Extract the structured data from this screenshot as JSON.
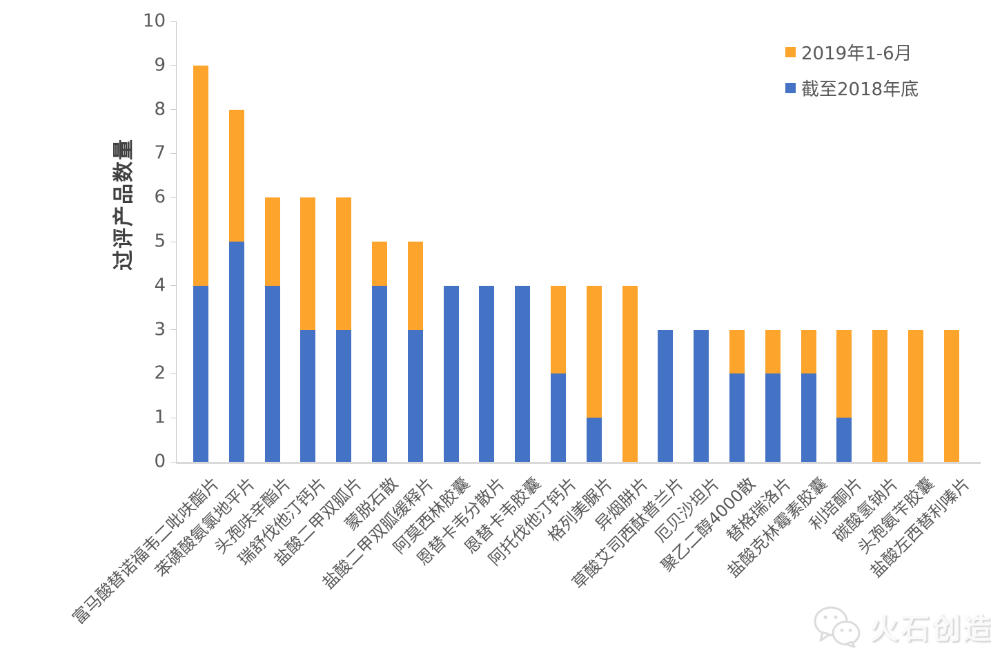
{
  "chart_data": {
    "type": "bar",
    "stacked": true,
    "title": "",
    "xlabel": "",
    "ylabel": "过评产品数量",
    "ylim": [
      0,
      10
    ],
    "yticks": [
      0,
      1,
      2,
      3,
      4,
      5,
      6,
      7,
      8,
      9,
      10
    ],
    "grid": false,
    "legend_position": "top-right",
    "categories": [
      "富马酸替诺福韦二吡呋酯片",
      "苯磺酸氨氯地平片",
      "头孢呋辛酯片",
      "瑞舒伐他汀钙片",
      "盐酸二甲双胍片",
      "蒙脱石散",
      "盐酸二甲双胍缓释片",
      "阿莫西林胶囊",
      "恩替卡韦分散片",
      "恩替卡韦胶囊",
      "阿托伐他汀钙片",
      "格列美脲片",
      "异烟肼片",
      "草酸艾司西酞普兰片",
      "厄贝沙坦片",
      "聚乙二醇4000散",
      "替格瑞洛片",
      "盐酸克林霉素胶囊",
      "利培酮片",
      "碳酸氢钠片",
      "头孢氨苄胶囊",
      "盐酸左西替利嗪片"
    ],
    "series": [
      {
        "name": "截至2018年底",
        "key": "until-2018",
        "color": "#4472C4",
        "values": [
          4,
          5,
          4,
          3,
          3,
          4,
          3,
          4,
          4,
          4,
          2,
          1,
          0,
          3,
          3,
          2,
          2,
          2,
          1,
          0,
          0,
          0
        ]
      },
      {
        "name": "2019年1-6月",
        "key": "2019-h1",
        "color": "#FCA42C",
        "values": [
          5,
          3,
          2,
          3,
          3,
          1,
          2,
          0,
          0,
          0,
          2,
          3,
          4,
          0,
          0,
          1,
          1,
          1,
          2,
          3,
          3,
          3
        ]
      }
    ]
  },
  "legend": {
    "items": [
      {
        "label": "2019年1-6月",
        "color": "#FCA42C"
      },
      {
        "label": "截至2018年底",
        "color": "#4472C4"
      }
    ]
  },
  "watermark": {
    "text": "火石创造",
    "icon": "wechat-icon"
  }
}
